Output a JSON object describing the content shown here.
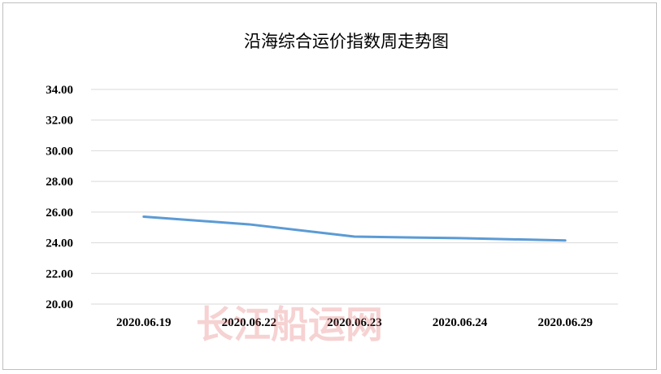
{
  "chart_data": {
    "type": "line",
    "title": "沿海综合运价指数周走势图",
    "categories": [
      "2020.06.19",
      "2020.06.22",
      "2020.06.23",
      "2020.06.24",
      "2020.06.29"
    ],
    "series": [
      {
        "values": [
          25.7,
          25.2,
          24.4,
          24.3,
          24.15
        ]
      }
    ],
    "ylim": [
      20,
      34
    ],
    "yticks": [
      "20.00",
      "22.00",
      "24.00",
      "26.00",
      "28.00",
      "30.00",
      "32.00",
      "34.00"
    ],
    "grid": true,
    "legend": "none",
    "line_color": "#5b9bd5",
    "grid_color": "#d9d9d9"
  },
  "watermark": "长江船运网"
}
